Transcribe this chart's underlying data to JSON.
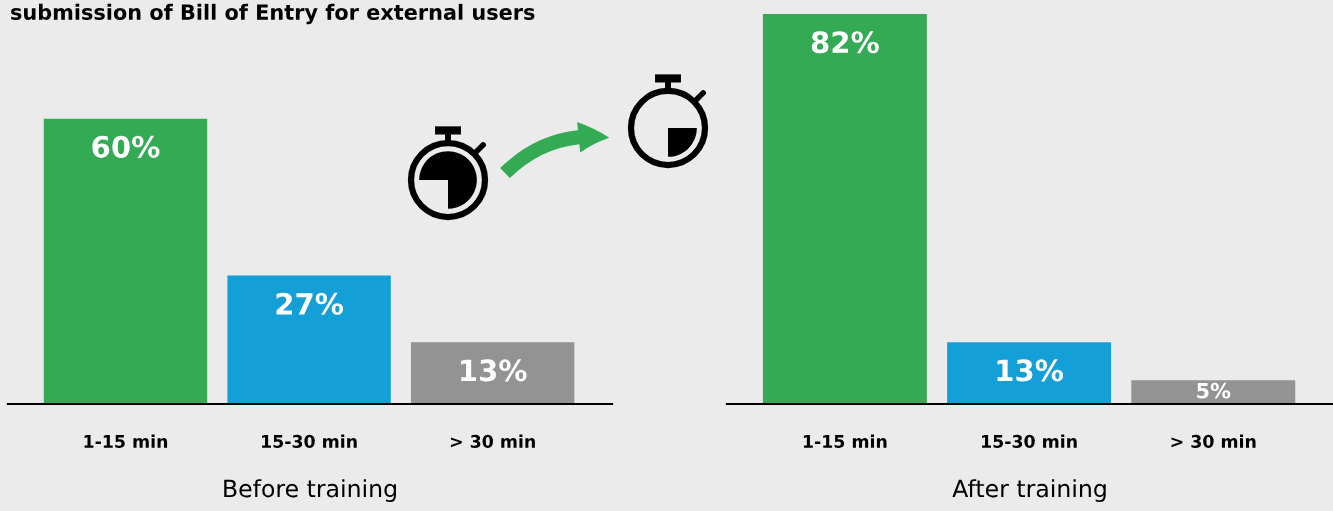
{
  "chart_data": [
    {
      "type": "bar",
      "title": "submission of Bill of Entry for external users",
      "xlabel": "Before training",
      "categories": [
        "1-15 min",
        "15-30 min",
        "> 30 min"
      ],
      "values": [
        60,
        27,
        13
      ],
      "colors": [
        "#35aa55",
        "#159fd7",
        "#939393"
      ],
      "data_labels": true,
      "value_labels": [
        "60%",
        "27%",
        "13%"
      ]
    },
    {
      "type": "bar",
      "xlabel": "After training",
      "categories": [
        "1-15 min",
        "15-30 min",
        "> 30 min"
      ],
      "values": [
        82,
        13,
        5
      ],
      "colors": [
        "#35aa55",
        "#159fd7",
        "#939393"
      ],
      "data_labels": true,
      "value_labels": [
        "82%",
        "13%",
        "5%"
      ]
    }
  ]
}
